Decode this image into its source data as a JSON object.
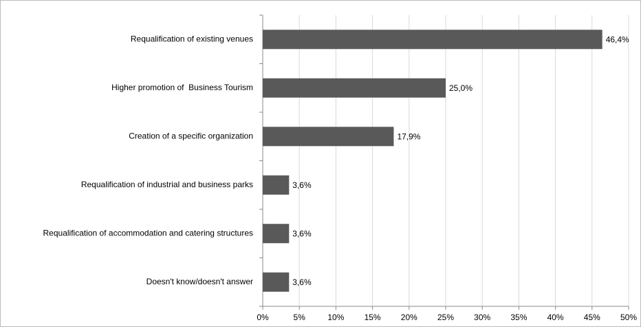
{
  "chart_data": {
    "type": "bar",
    "orientation": "horizontal",
    "categories": [
      "Requalification of existing venues",
      "Higher promotion of  Business Tourism",
      "Creation of a specific organization",
      "Requalification of industrial and business parks",
      "Requalification of accommodation and catering structures",
      "Doesn't know/doesn't answer"
    ],
    "values": [
      46.4,
      25.0,
      17.9,
      3.6,
      3.6,
      3.6
    ],
    "value_labels": [
      "46,4%",
      "25,0%",
      "17,9%",
      "3,6%",
      "3,6%",
      "3,6%"
    ],
    "color": "#595959",
    "xlim": [
      0,
      50
    ],
    "xticks": [
      {
        "value": 0,
        "label": "0%"
      },
      {
        "value": 5,
        "label": "5%"
      },
      {
        "value": 10,
        "label": "10%"
      },
      {
        "value": 15,
        "label": "15%"
      },
      {
        "value": 20,
        "label": "20%"
      },
      {
        "value": 25,
        "label": "25%"
      },
      {
        "value": 30,
        "label": "30%"
      },
      {
        "value": 35,
        "label": "35%"
      },
      {
        "value": 40,
        "label": "40%"
      },
      {
        "value": 45,
        "label": "45%"
      },
      {
        "value": 50,
        "label": "50%"
      }
    ],
    "grid": true
  }
}
